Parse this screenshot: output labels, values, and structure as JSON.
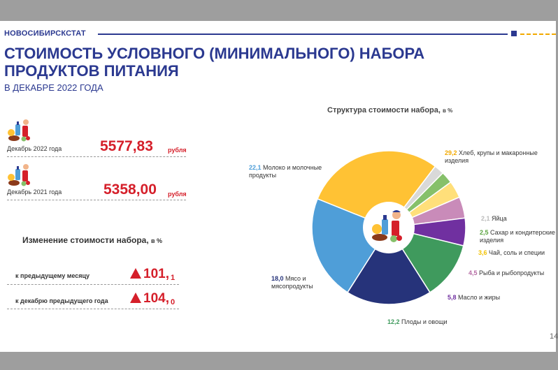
{
  "header": {
    "org": "НОВОСИБИРСКСТАТ",
    "title": "СТОИМОСТЬ УСЛОВНОГО (МИНИМАЛЬНОГО) НАБОРА ПРОДУКТОВ ПИТАНИЯ",
    "subtitle": "В ДЕКАБРЕ 2022 ГОДА"
  },
  "costs": [
    {
      "label": "Декабрь 2022 года",
      "value": "5577,83",
      "unit": "рубля"
    },
    {
      "label": "Декабрь 2021 года",
      "value": "5358,00",
      "unit": "рубля"
    }
  ],
  "change": {
    "title": "Изменение стоимости набора,",
    "title_unit": "в %",
    "rows": [
      {
        "label": "к предыдущему месяцу",
        "int": "101,",
        "dec": "1"
      },
      {
        "label": "к декабрю предыдущего года",
        "int": "104,",
        "dec": "0"
      }
    ]
  },
  "page_number": "14",
  "colors": {
    "brand": "#2b3990",
    "accent_red": "#d51f2a",
    "accent_yellow": "#f2a900"
  },
  "chart_data": {
    "type": "pie",
    "title": "Структура стоимости набора,",
    "title_unit": "в %",
    "donut": true,
    "center_icon": "grocery-basket-icon",
    "slices": [
      {
        "name": "Хлеб, крупы и макаронные изделия",
        "value": 29.2,
        "display": "29,2",
        "color": "#ffc234"
      },
      {
        "name": "Яйца",
        "value": 2.1,
        "display": "2,1",
        "color": "#d9d9d9"
      },
      {
        "name": "Сахар и кондитерские изделия",
        "value": 2.5,
        "display": "2,5",
        "color": "#86c06a"
      },
      {
        "name": "Чай, соль и специи",
        "value": 3.6,
        "display": "3,6",
        "color": "#ffdf7a"
      },
      {
        "name": "Рыба и рыбопродукты",
        "value": 4.5,
        "display": "4,5",
        "color": "#c98bb9"
      },
      {
        "name": "Масло и жиры",
        "value": 5.8,
        "display": "5,8",
        "color": "#7030a0"
      },
      {
        "name": "Плоды и овощи",
        "value": 12.2,
        "display": "12,2",
        "color": "#3f9a5d"
      },
      {
        "name": "Мясо и мясопродукты",
        "value": 18.0,
        "display": "18,0",
        "color": "#26337a"
      },
      {
        "name": "Молоко и молочные продукты",
        "value": 22.1,
        "display": "22,1",
        "color": "#4f9ed8"
      }
    ]
  }
}
